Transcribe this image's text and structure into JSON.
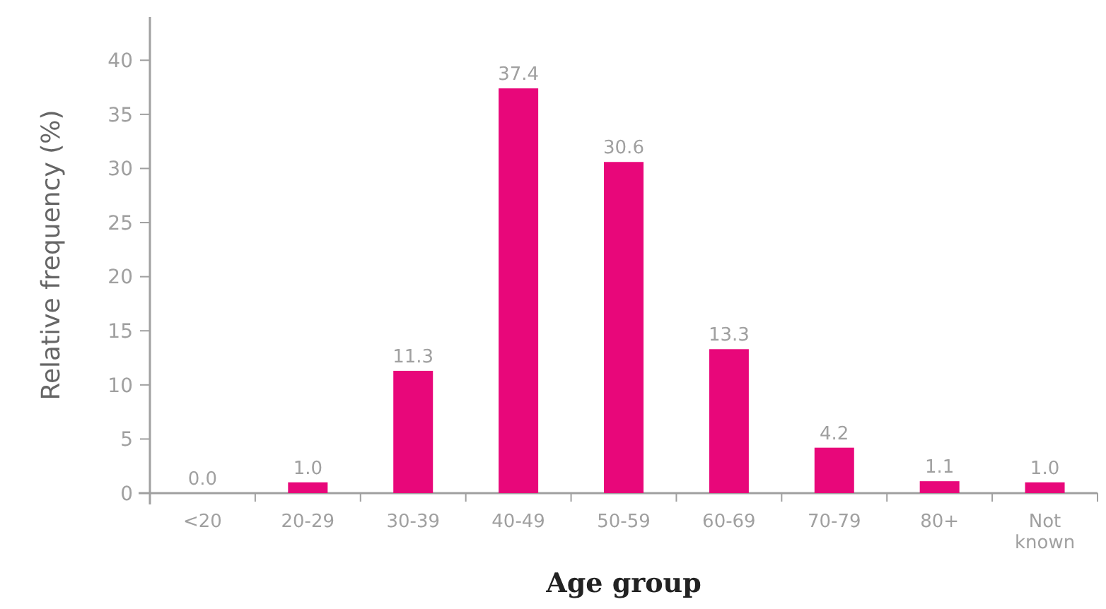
{
  "chart_data": {
    "type": "bar",
    "xlabel": "Age group",
    "ylabel": "Relative frequency (%)",
    "categories": [
      "<20",
      "20-29",
      "30-39",
      "40-49",
      "50-59",
      "60-69",
      "70-79",
      "80+",
      "Not known"
    ],
    "values": [
      0.0,
      1.0,
      11.3,
      37.4,
      30.6,
      13.3,
      4.2,
      1.1,
      1.0
    ],
    "value_labels": [
      "0.0",
      "1.0",
      "11.3",
      "37.4",
      "30.6",
      "13.3",
      "4.2",
      "1.1",
      "1.0"
    ],
    "color": "#e8077a",
    "ylim": [
      0,
      44
    ],
    "yticks": [
      0,
      5,
      10,
      15,
      20,
      25,
      30,
      35,
      40
    ],
    "grid": false
  }
}
